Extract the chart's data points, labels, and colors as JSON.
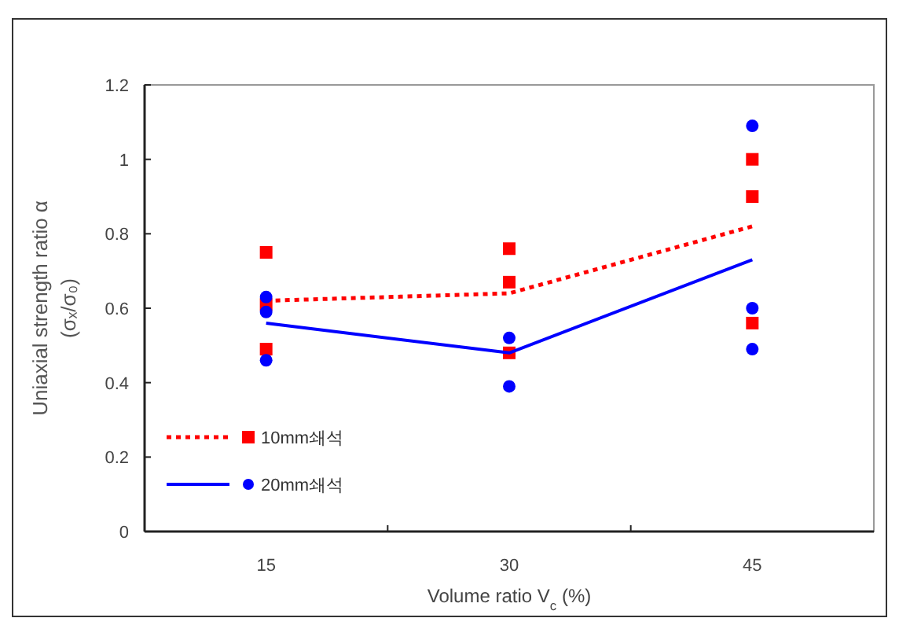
{
  "chart_data": {
    "type": "line",
    "xlabel": "Volume ratio V$_{c}$ (%)",
    "ylabel": "Uniaxial strength ratio α\n(σₓ/σ₀)",
    "categories": [
      "15",
      "30",
      "45"
    ],
    "ylim": [
      0,
      1.2
    ],
    "yticks": [
      0,
      0.2,
      0.4,
      0.6,
      0.8,
      1,
      1.2
    ],
    "grid": false,
    "legend": "bottom left",
    "series": [
      {
        "name": "10mm쇄석",
        "color": "#ff0000",
        "line_style": "dotted",
        "marker": "none",
        "values": [
          0.62,
          0.64,
          0.82
        ]
      },
      {
        "type": "scatter",
        "color": "#ff0000",
        "marker": "square",
        "x": [
          "15",
          "15",
          "15",
          "30",
          "30",
          "30",
          "45",
          "45",
          "45"
        ],
        "values": [
          0.75,
          0.61,
          0.49,
          0.76,
          0.67,
          0.48,
          1.0,
          0.9,
          0.56
        ]
      },
      {
        "name": "20mm쇄석",
        "color": "#0000ff",
        "line_style": "solid",
        "marker": "none",
        "values": [
          0.56,
          0.48,
          0.73
        ]
      },
      {
        "type": "scatter",
        "color": "#0000ff",
        "marker": "circle",
        "x": [
          "15",
          "15",
          "15",
          "30",
          "30",
          "45",
          "45",
          "45"
        ],
        "values": [
          0.63,
          0.59,
          0.46,
          0.52,
          0.39,
          1.09,
          0.6,
          0.49
        ]
      }
    ]
  }
}
